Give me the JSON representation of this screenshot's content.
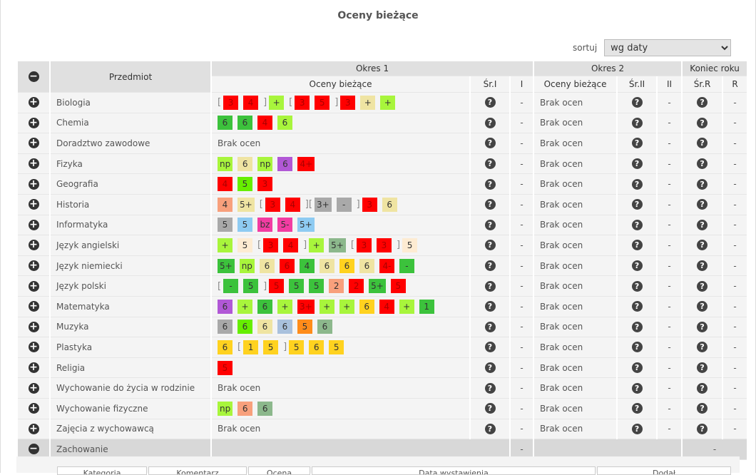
{
  "title": "Oceny bieżące",
  "sort": {
    "label": "sortuj",
    "value": "wg daty"
  },
  "headers": {
    "subject": "Przedmiot",
    "period1": "Okres 1",
    "period2": "Okres 2",
    "yearEnd": "Koniec roku",
    "current": "Oceny bieżące",
    "avg1": "Śr.I",
    "final1": "I",
    "current2": "Oceny bieżące",
    "avg2": "Śr.II",
    "final2": "II",
    "avgR": "Śr.R",
    "finalR": "R"
  },
  "colors": {
    "r": "#ff0000",
    "lg": "#a8f53c",
    "dg": "#3cc23c",
    "kh": "#efe4a2",
    "pu": "#b158d6",
    "sa": "#f8a07c",
    "gr": "#a9a9a9",
    "sg": "#8cb88c",
    "lb": "#8ecbf2",
    "pk": "#f23ca2",
    "bq": "#fdebd2",
    "go": "#ffd21f",
    "bg": "#66ee00",
    "bl": "#a9c1dd",
    "or": "#ff8c1a"
  },
  "no_grades": "Brak ocen",
  "dash": "-",
  "subjects": [
    {
      "name": "Biologia",
      "grades": [
        "[",
        [
          "3",
          "r"
        ],
        [
          "4",
          "r"
        ],
        "]",
        [
          "+",
          "lg"
        ],
        "[",
        [
          "3",
          "r"
        ],
        [
          "5",
          "r"
        ],
        "]",
        [
          "3",
          "r"
        ],
        [
          "+",
          "kh"
        ],
        [
          "+",
          "lg"
        ]
      ]
    },
    {
      "name": "Chemia",
      "grades": [
        [
          "6",
          "dg"
        ],
        [
          "6",
          "dg"
        ],
        [
          "4",
          "r"
        ],
        [
          "6",
          "lg"
        ]
      ]
    },
    {
      "name": "Doradztwo zawodowe",
      "grades": []
    },
    {
      "name": "Fizyka",
      "grades": [
        [
          "np",
          "lg"
        ],
        [
          "6",
          "kh"
        ],
        [
          "np",
          "lg"
        ],
        [
          "6",
          "pu"
        ],
        [
          "4+",
          "r"
        ]
      ]
    },
    {
      "name": "Geografia",
      "grades": [
        [
          "4",
          "r"
        ],
        [
          "5",
          "bg"
        ],
        [
          "3",
          "r"
        ]
      ]
    },
    {
      "name": "Historia",
      "grades": [
        [
          "4",
          "sa"
        ],
        [
          "5+",
          "kh"
        ],
        "[",
        [
          "3",
          "r"
        ],
        [
          "4",
          "r"
        ],
        "][",
        [
          "3+",
          "gr"
        ],
        [
          "-",
          "gr"
        ],
        "]",
        [
          "3",
          "r"
        ],
        [
          "6",
          "kh"
        ]
      ]
    },
    {
      "name": "Informatyka",
      "grades": [
        [
          "5",
          "gr"
        ],
        [
          "5",
          "lb"
        ],
        [
          "bz",
          "pk"
        ],
        [
          "5-",
          "pk"
        ],
        [
          "5+",
          "lb"
        ]
      ]
    },
    {
      "name": "Język angielski",
      "grades": [
        [
          "+",
          "lg"
        ],
        [
          "5",
          "bq"
        ],
        "[",
        [
          "3",
          "r"
        ],
        [
          "4",
          "r"
        ],
        "]",
        [
          "+",
          "lg"
        ],
        [
          "5+",
          "sg"
        ],
        "[",
        [
          "3",
          "r"
        ],
        [
          "3",
          "r"
        ],
        "]",
        [
          "5",
          "bq"
        ]
      ]
    },
    {
      "name": "Język niemiecki",
      "grades": [
        [
          "5+",
          "dg"
        ],
        [
          "np",
          "lg"
        ],
        [
          "6",
          "kh"
        ],
        [
          "6",
          "r"
        ],
        [
          "4",
          "dg"
        ],
        [
          "6",
          "kh"
        ],
        [
          "6",
          "go"
        ],
        [
          "6",
          "kh"
        ],
        [
          "4-",
          "r"
        ],
        [
          "-",
          "dg"
        ]
      ]
    },
    {
      "name": "Język polski",
      "grades": [
        "[",
        [
          "-",
          "dg"
        ],
        [
          "5",
          "dg"
        ],
        "]",
        [
          "5",
          "r"
        ],
        [
          "5",
          "dg"
        ],
        [
          "5",
          "dg"
        ],
        [
          "2",
          "sa"
        ],
        [
          "2",
          "r"
        ],
        [
          "5+",
          "dg"
        ],
        [
          "5",
          "r"
        ]
      ]
    },
    {
      "name": "Matematyka",
      "grades": [
        [
          "6",
          "pu"
        ],
        [
          "+",
          "lg"
        ],
        [
          "6",
          "dg"
        ],
        [
          "+",
          "lg"
        ],
        [
          "3+",
          "r"
        ],
        [
          "+",
          "lg"
        ],
        [
          "+",
          "lg"
        ],
        [
          "6",
          "go"
        ],
        [
          "4",
          "r"
        ],
        [
          "+",
          "lg"
        ],
        [
          "1",
          "dg"
        ]
      ]
    },
    {
      "name": "Muzyka",
      "grades": [
        [
          "6",
          "gr"
        ],
        [
          "6",
          "bg"
        ],
        [
          "6",
          "kh"
        ],
        [
          "6",
          "bl"
        ],
        [
          "5",
          "or"
        ],
        [
          "6",
          "sg"
        ]
      ]
    },
    {
      "name": "Plastyka",
      "grades": [
        [
          "6",
          "go"
        ],
        "[",
        [
          "1",
          "go"
        ],
        [
          "5",
          "go"
        ],
        "]",
        [
          "5",
          "go"
        ],
        [
          "6",
          "go"
        ],
        [
          "5",
          "go"
        ]
      ]
    },
    {
      "name": "Religia",
      "grades": [
        [
          "5",
          "r"
        ]
      ]
    },
    {
      "name": "Wychowanie do życia w rodzinie",
      "grades": []
    },
    {
      "name": "Wychowanie fizyczne",
      "grades": [
        [
          "np",
          "lg"
        ],
        [
          "6",
          "sa"
        ],
        [
          "6",
          "sg"
        ]
      ]
    },
    {
      "name": "Zajęcia z wychowawcą",
      "grades": []
    }
  ],
  "behavior": {
    "name": "Zachowanie"
  },
  "detail_headers": [
    "Kategoria",
    "Komentarz",
    "Ocena",
    "Data wystawienia",
    "Dodał"
  ]
}
